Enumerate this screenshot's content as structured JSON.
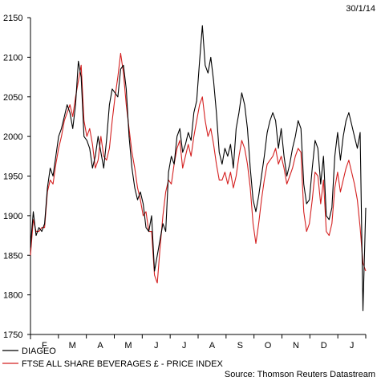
{
  "chart_data": {
    "type": "line",
    "date_label": "30/1/14",
    "source": "Source: Thomson Reuters Datastream",
    "ylim": [
      1750,
      2150
    ],
    "yticks": [
      1750,
      1800,
      1850,
      1900,
      1950,
      2000,
      2050,
      2100,
      2150
    ],
    "months": [
      "F",
      "M",
      "A",
      "M",
      "J",
      "J",
      "A",
      "S",
      "O",
      "N",
      "D",
      "J"
    ],
    "grid": false,
    "legend_position": "bottom-left",
    "series": [
      {
        "name": "DIAGEO",
        "color": "#000000",
        "values": [
          1860,
          1905,
          1875,
          1885,
          1880,
          1890,
          1935,
          1960,
          1950,
          1975,
          2000,
          2010,
          2025,
          2040,
          2030,
          2010,
          2040,
          2095,
          2075,
          2000,
          1995,
          1985,
          1960,
          1975,
          2000,
          1980,
          1960,
          1995,
          2040,
          2060,
          2055,
          2050,
          2085,
          2090,
          2060,
          2000,
          1960,
          1935,
          1920,
          1930,
          1915,
          1885,
          1880,
          1900,
          1830,
          1850,
          1870,
          1890,
          1880,
          1955,
          1975,
          1965,
          2000,
          2010,
          1980,
          1990,
          2005,
          1995,
          2030,
          2045,
          2095,
          2140,
          2090,
          2080,
          2100,
          2070,
          2030,
          1980,
          1965,
          1985,
          1975,
          1990,
          1960,
          2010,
          2030,
          2055,
          2040,
          2010,
          1960,
          1920,
          1905,
          1925,
          1950,
          1975,
          2005,
          2020,
          2030,
          2020,
          1985,
          2010,
          1975,
          1950,
          1965,
          1985,
          2000,
          2020,
          2010,
          1940,
          1915,
          1920,
          1960,
          1995,
          1985,
          1940,
          1975,
          1900,
          1895,
          1910,
          1975,
          2005,
          1970,
          2000,
          2020,
          2030,
          2015,
          2000,
          1985,
          2005,
          1780,
          1910
        ]
      },
      {
        "name": "FTSE ALL SHARE BEVERAGES £ - PRICE INDEX",
        "color": "#d42020",
        "values": [
          1850,
          1895,
          1880,
          1880,
          1885,
          1885,
          1930,
          1945,
          1940,
          1965,
          1985,
          2000,
          2020,
          2030,
          2040,
          2025,
          2050,
          2070,
          2090,
          2020,
          2000,
          2010,
          1990,
          1960,
          1970,
          2000,
          1975,
          1970,
          1985,
          2020,
          2050,
          2075,
          2105,
          2080,
          2040,
          2010,
          1980,
          1960,
          1935,
          1920,
          1900,
          1905,
          1880,
          1880,
          1825,
          1815,
          1860,
          1900,
          1930,
          1945,
          1940,
          1965,
          1985,
          1995,
          1960,
          1975,
          1990,
          1975,
          2000,
          2020,
          2040,
          2050,
          2020,
          2000,
          2010,
          1990,
          1965,
          1945,
          1945,
          1955,
          1940,
          1955,
          1935,
          1950,
          1975,
          1995,
          1985,
          1965,
          1935,
          1890,
          1865,
          1890,
          1920,
          1945,
          1965,
          1970,
          1975,
          1985,
          1965,
          1975,
          1960,
          1940,
          1950,
          1960,
          1975,
          1985,
          1980,
          1905,
          1880,
          1890,
          1920,
          1955,
          1950,
          1915,
          1945,
          1880,
          1875,
          1890,
          1935,
          1955,
          1930,
          1945,
          1960,
          1970,
          1955,
          1940,
          1920,
          1885,
          1840,
          1830
        ]
      }
    ]
  }
}
